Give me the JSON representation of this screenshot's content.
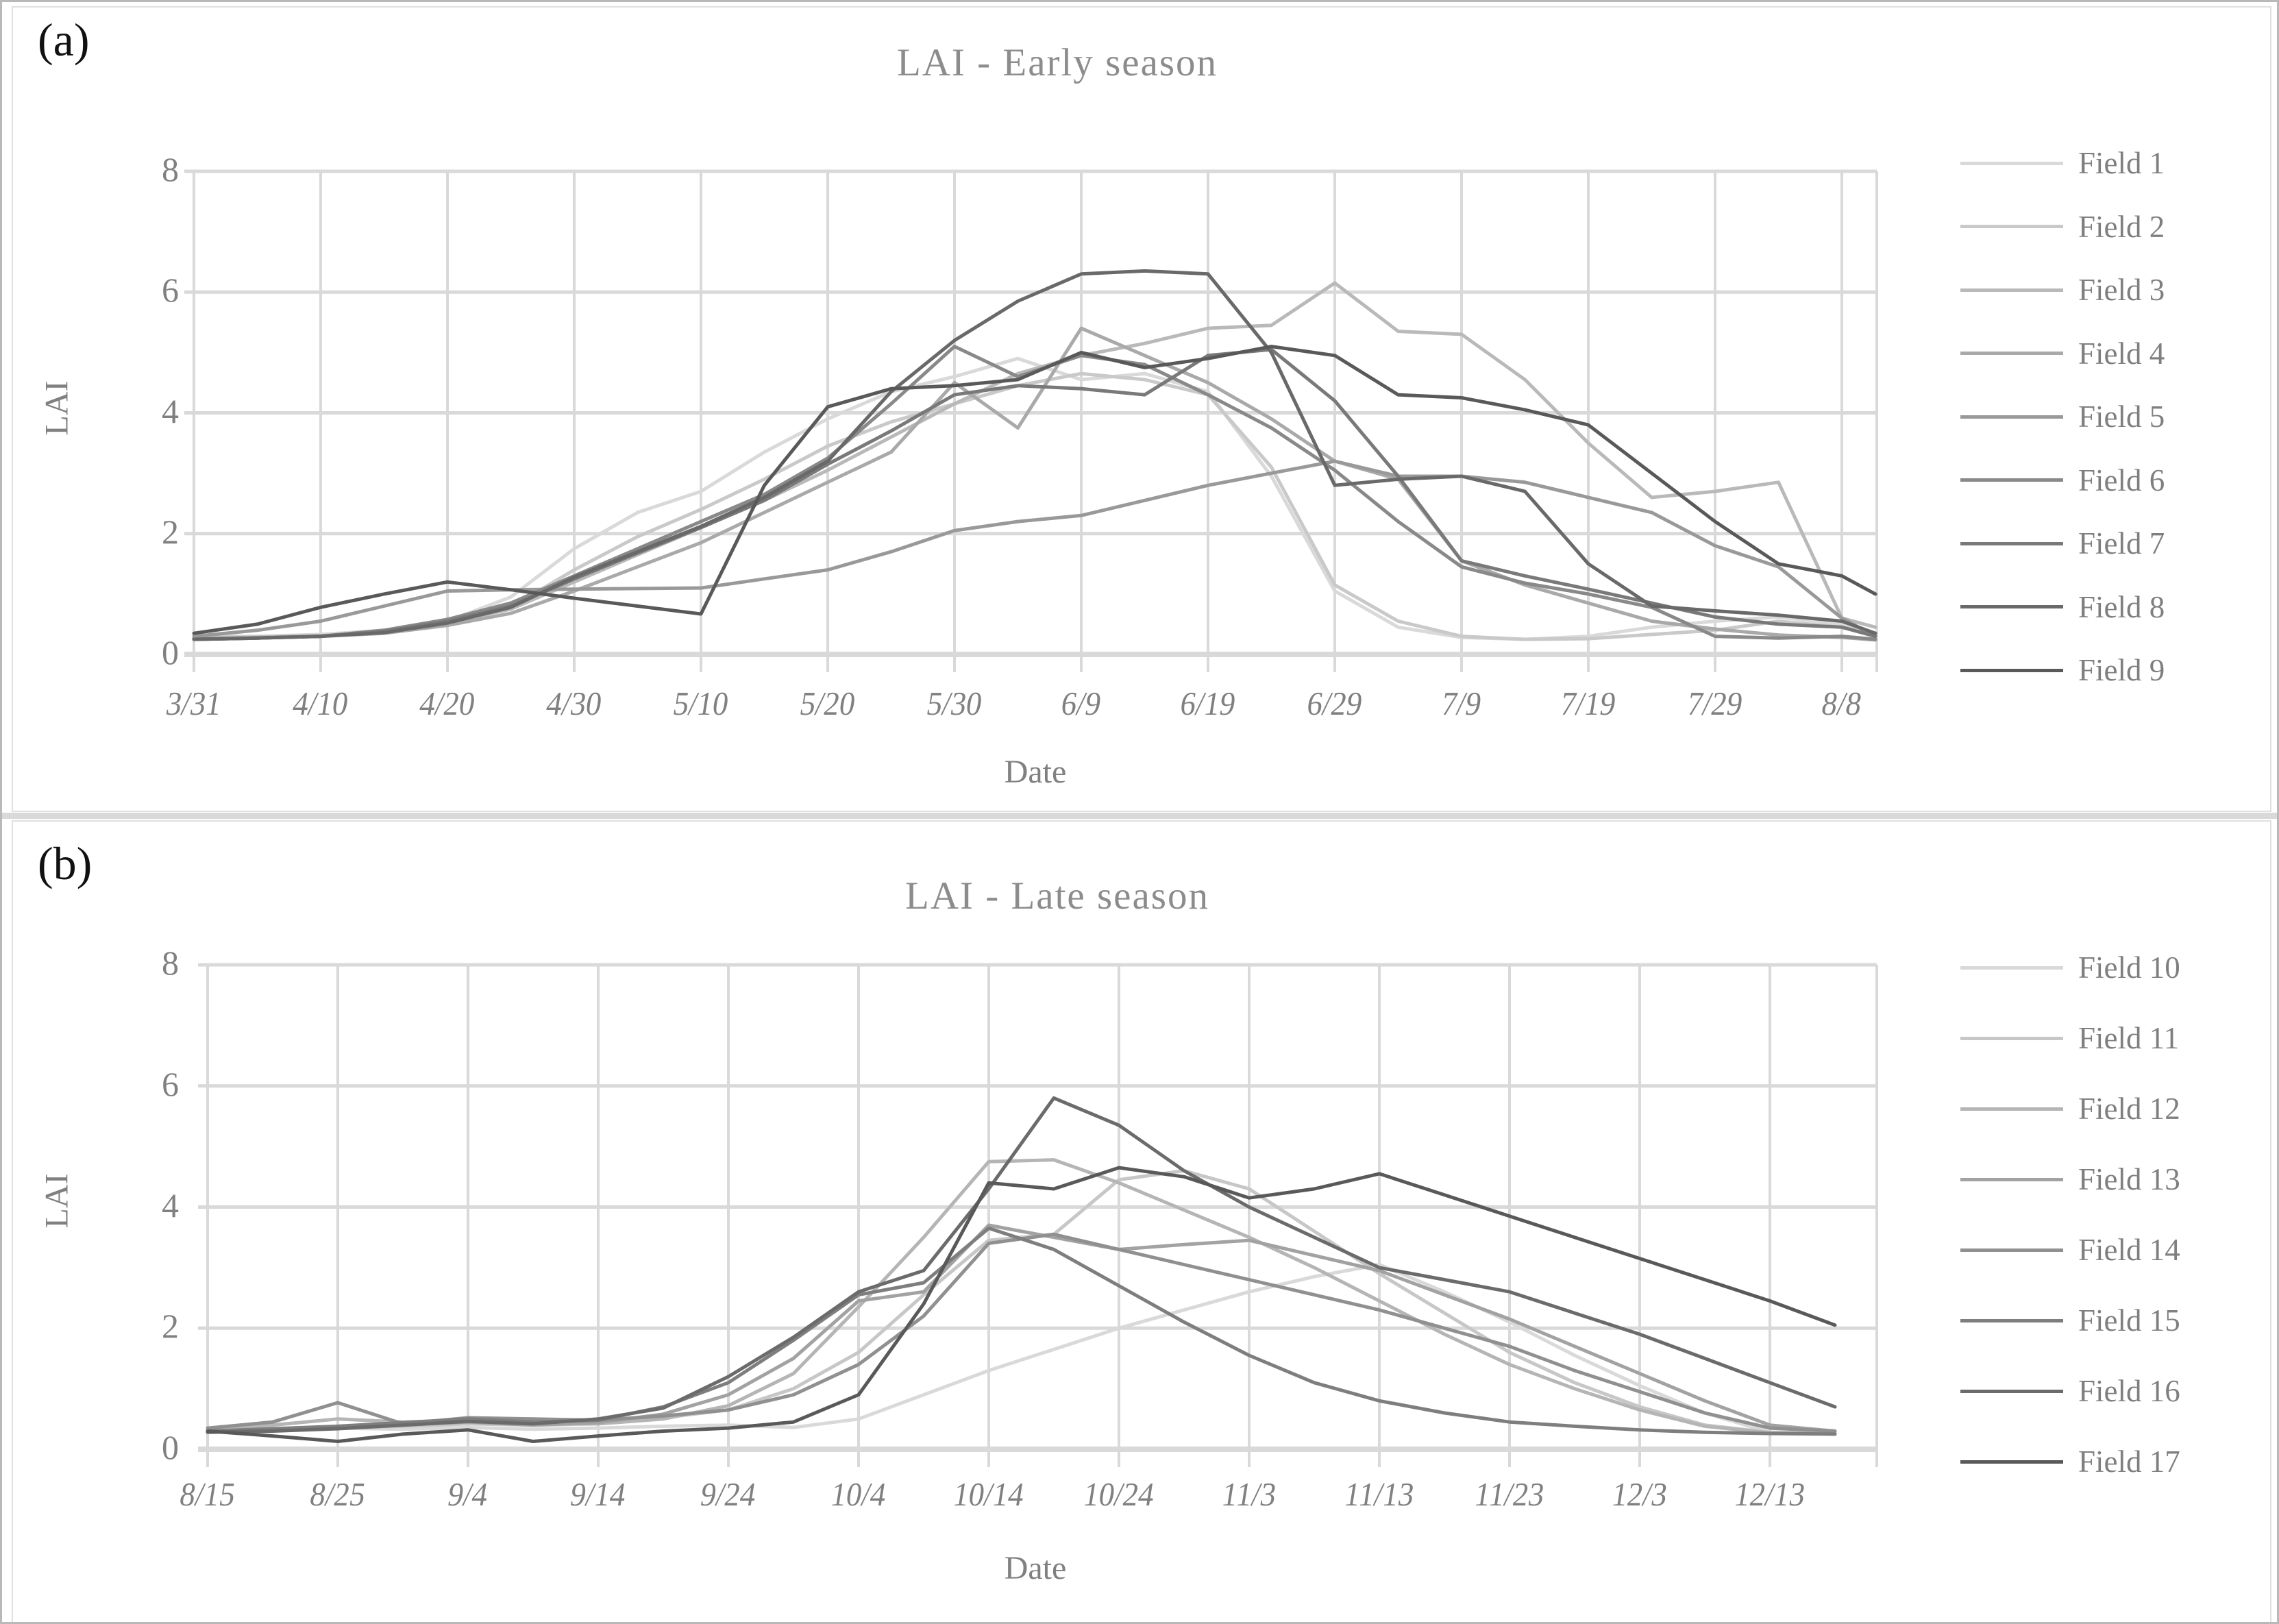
{
  "figure": {
    "panels": [
      {
        "label": "(a)"
      },
      {
        "label": "(b)"
      }
    ]
  },
  "chart_data": [
    {
      "id": "early-season",
      "type": "line",
      "title": "LAI - Early season",
      "xlabel": "Date",
      "ylabel": "LAI",
      "ylim": [
        0,
        8
      ],
      "yticks": [
        0,
        2,
        4,
        6,
        8
      ],
      "grid": true,
      "legend_position": "right",
      "xtick_labels": [
        "3/31",
        "4/10",
        "4/20",
        "4/30",
        "5/10",
        "5/20",
        "5/30",
        "6/9",
        "6/19",
        "6/29",
        "7/9",
        "7/19",
        "7/29",
        "8/8"
      ],
      "x": [
        "3/31",
        "4/5",
        "4/10",
        "4/15",
        "4/20",
        "4/25",
        "4/30",
        "5/5",
        "5/10",
        "5/15",
        "5/20",
        "5/25",
        "5/30",
        "6/4",
        "6/9",
        "6/14",
        "6/19",
        "6/24",
        "6/29",
        "7/4",
        "7/9",
        "7/14",
        "7/19",
        "7/24",
        "7/29",
        "8/3",
        "8/8",
        "8/13"
      ],
      "series": [
        {
          "name": "Field 1",
          "color": "#D9D9D9",
          "values": [
            0.3,
            0.3,
            0.33,
            0.4,
            0.55,
            0.95,
            1.75,
            2.35,
            2.7,
            3.35,
            3.9,
            4.35,
            4.6,
            4.9,
            4.55,
            4.65,
            4.35,
            2.95,
            1.05,
            0.45,
            0.28,
            0.25,
            0.3,
            0.45,
            0.55,
            0.62,
            0.5,
            0.3
          ]
        },
        {
          "name": "Field 2",
          "color": "#C9C9C9",
          "values": [
            0.28,
            0.29,
            0.31,
            0.37,
            0.5,
            0.78,
            1.4,
            1.95,
            2.4,
            2.9,
            3.45,
            3.85,
            4.15,
            4.45,
            4.65,
            4.55,
            4.3,
            3.1,
            1.15,
            0.55,
            0.3,
            0.25,
            0.26,
            0.33,
            0.4,
            0.55,
            0.45,
            0.35
          ]
        },
        {
          "name": "Field 3",
          "color": "#B9B9B9",
          "values": [
            0.26,
            0.28,
            0.31,
            0.38,
            0.52,
            0.75,
            1.2,
            1.65,
            2.1,
            2.55,
            3.05,
            3.6,
            4.15,
            4.65,
            4.95,
            5.15,
            5.4,
            5.45,
            6.15,
            5.35,
            5.3,
            4.55,
            3.5,
            2.6,
            2.7,
            2.85,
            0.6,
            0.45
          ]
        },
        {
          "name": "Field 4",
          "color": "#A9A9A9",
          "values": [
            0.26,
            0.28,
            0.3,
            0.35,
            0.48,
            0.68,
            1.05,
            1.45,
            1.85,
            2.35,
            2.85,
            3.35,
            4.5,
            3.75,
            5.4,
            4.95,
            4.5,
            3.9,
            3.2,
            2.9,
            1.55,
            1.15,
            0.85,
            0.55,
            0.42,
            0.32,
            0.28,
            0.24
          ]
        },
        {
          "name": "Field 5",
          "color": "#999999",
          "values": [
            0.3,
            0.4,
            0.55,
            0.8,
            1.05,
            1.07,
            1.08,
            1.09,
            1.1,
            1.25,
            1.4,
            1.7,
            2.05,
            2.2,
            2.3,
            2.55,
            2.8,
            3.0,
            3.2,
            2.95,
            2.95,
            2.85,
            2.6,
            2.35,
            1.8,
            1.45,
            0.6,
            0.3
          ]
        },
        {
          "name": "Field 6",
          "color": "#898989",
          "values": [
            0.25,
            0.27,
            0.3,
            0.4,
            0.58,
            0.85,
            1.3,
            1.75,
            2.2,
            2.65,
            3.25,
            4.15,
            5.1,
            4.6,
            4.95,
            4.8,
            4.3,
            3.75,
            3.05,
            2.2,
            1.45,
            1.18,
            1.0,
            0.78,
            0.3,
            0.27,
            0.3,
            0.25
          ]
        },
        {
          "name": "Field 7",
          "color": "#797979",
          "values": [
            0.25,
            0.27,
            0.3,
            0.38,
            0.55,
            0.8,
            1.25,
            1.68,
            2.1,
            2.55,
            3.15,
            3.7,
            4.3,
            4.45,
            4.4,
            4.3,
            4.95,
            5.05,
            4.2,
            2.95,
            1.55,
            1.3,
            1.08,
            0.85,
            0.62,
            0.5,
            0.45,
            0.3
          ]
        },
        {
          "name": "Field 8",
          "color": "#696969",
          "values": [
            0.25,
            0.27,
            0.3,
            0.36,
            0.52,
            0.78,
            1.28,
            1.7,
            2.12,
            2.6,
            3.2,
            4.35,
            5.2,
            5.85,
            6.3,
            6.35,
            6.3,
            5.0,
            2.8,
            2.9,
            2.95,
            2.7,
            1.5,
            0.8,
            0.72,
            0.65,
            0.55,
            0.35
          ]
        },
        {
          "name": "Field 9",
          "color": "#595959",
          "values": [
            0.35,
            0.5,
            0.78,
            1.0,
            1.2,
            1.07,
            0.93,
            0.8,
            0.67,
            2.8,
            4.1,
            4.4,
            4.45,
            4.55,
            5.0,
            4.75,
            4.9,
            5.1,
            4.95,
            4.3,
            4.25,
            4.05,
            3.8,
            3.0,
            2.2,
            1.5,
            1.3,
            1.0
          ]
        }
      ]
    },
    {
      "id": "late-season",
      "type": "line",
      "title": "LAI - Late season",
      "xlabel": "Date",
      "ylabel": "LAI",
      "ylim": [
        0,
        8
      ],
      "yticks": [
        0,
        2,
        4,
        6,
        8
      ],
      "grid": true,
      "legend_position": "right",
      "xtick_labels": [
        "8/15",
        "8/25",
        "9/4",
        "9/14",
        "9/24",
        "10/4",
        "10/14",
        "10/24",
        "11/3",
        "11/13",
        "11/23",
        "12/3",
        "12/13"
      ],
      "x": [
        "8/15",
        "8/20",
        "8/25",
        "8/30",
        "9/4",
        "9/9",
        "9/14",
        "9/19",
        "9/24",
        "9/29",
        "10/4",
        "10/9",
        "10/14",
        "10/19",
        "10/24",
        "10/29",
        "11/3",
        "11/8",
        "11/13",
        "11/18",
        "11/23",
        "11/28",
        "12/3",
        "12/8",
        "12/13",
        "12/18"
      ],
      "series": [
        {
          "name": "Field 10",
          "color": "#D9D9D9",
          "values": [
            0.3,
            0.32,
            0.35,
            0.33,
            0.36,
            0.33,
            0.35,
            0.38,
            0.4,
            0.36,
            0.5,
            0.9,
            1.3,
            1.65,
            2.0,
            2.3,
            2.6,
            2.85,
            3.05,
            2.6,
            2.1,
            1.55,
            1.05,
            0.6,
            0.28,
            0.25
          ]
        },
        {
          "name": "Field 11",
          "color": "#C7C7C7",
          "values": [
            0.35,
            0.33,
            0.35,
            0.38,
            0.42,
            0.4,
            0.42,
            0.52,
            0.65,
            1.0,
            1.6,
            2.55,
            3.45,
            3.55,
            4.45,
            4.6,
            4.3,
            3.6,
            2.9,
            2.25,
            1.6,
            1.1,
            0.7,
            0.4,
            0.28,
            0.27
          ]
        },
        {
          "name": "Field 12",
          "color": "#B5B5B5",
          "values": [
            0.35,
            0.4,
            0.5,
            0.45,
            0.48,
            0.44,
            0.42,
            0.5,
            0.72,
            1.25,
            2.35,
            3.5,
            4.75,
            4.78,
            4.4,
            3.95,
            3.5,
            3.0,
            2.45,
            1.9,
            1.4,
            1.0,
            0.65,
            0.38,
            0.27,
            0.26
          ]
        },
        {
          "name": "Field 13",
          "color": "#A2A2A2",
          "values": [
            0.3,
            0.33,
            0.36,
            0.4,
            0.45,
            0.4,
            0.44,
            0.58,
            0.9,
            1.5,
            2.45,
            2.6,
            3.7,
            3.5,
            3.3,
            3.38,
            3.45,
            3.2,
            2.95,
            2.55,
            2.15,
            1.7,
            1.25,
            0.8,
            0.4,
            0.3
          ]
        },
        {
          "name": "Field 14",
          "color": "#909090",
          "values": [
            0.35,
            0.45,
            0.77,
            0.42,
            0.52,
            0.5,
            0.48,
            0.55,
            0.65,
            0.9,
            1.4,
            2.2,
            3.4,
            3.55,
            3.3,
            3.05,
            2.8,
            2.55,
            2.3,
            2.0,
            1.7,
            1.3,
            0.95,
            0.6,
            0.35,
            0.3
          ]
        },
        {
          "name": "Field 15",
          "color": "#7E7E7E",
          "values": [
            0.3,
            0.34,
            0.38,
            0.44,
            0.5,
            0.45,
            0.48,
            0.7,
            1.1,
            1.8,
            2.55,
            2.75,
            3.65,
            3.3,
            2.7,
            2.1,
            1.55,
            1.1,
            0.8,
            0.6,
            0.45,
            0.38,
            0.32,
            0.28,
            0.26,
            0.25
          ]
        },
        {
          "name": "Field 16",
          "color": "#6B6B6B",
          "values": [
            0.28,
            0.3,
            0.34,
            0.4,
            0.46,
            0.42,
            0.5,
            0.68,
            1.2,
            1.85,
            2.6,
            2.95,
            4.3,
            5.8,
            5.35,
            4.6,
            4.0,
            3.5,
            3.0,
            2.8,
            2.6,
            2.25,
            1.9,
            1.5,
            1.1,
            0.7
          ]
        },
        {
          "name": "Field 17",
          "color": "#595959",
          "values": [
            0.3,
            0.22,
            0.13,
            0.25,
            0.32,
            0.13,
            0.22,
            0.3,
            0.35,
            0.45,
            0.9,
            2.4,
            4.4,
            4.3,
            4.65,
            4.5,
            4.15,
            4.3,
            4.55,
            4.2,
            3.85,
            3.5,
            3.15,
            2.8,
            2.45,
            2.05
          ]
        }
      ]
    }
  ]
}
